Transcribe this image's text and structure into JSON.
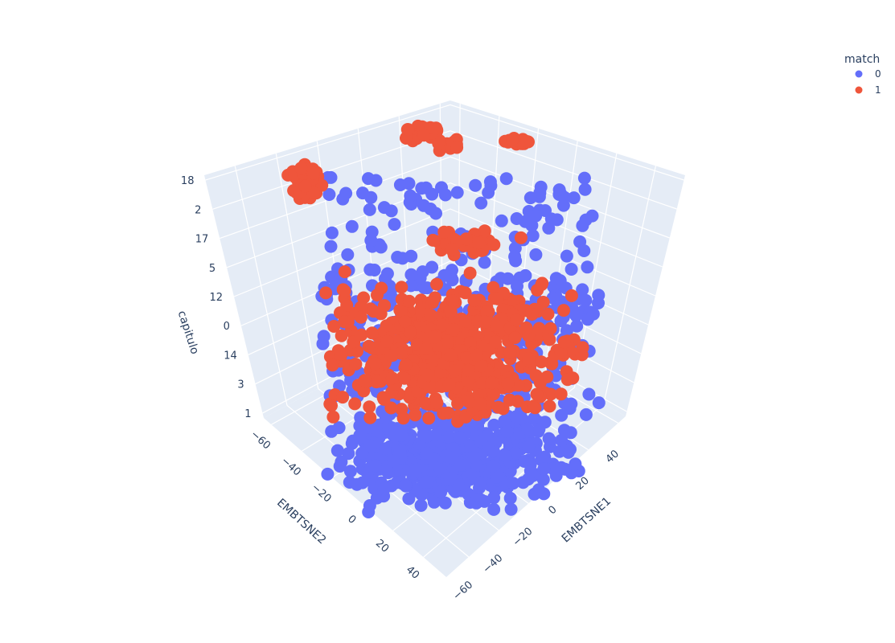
{
  "chart_data": {
    "type": "scatter3d",
    "axes": {
      "x": {
        "label": "EMBTSNE1",
        "ticks": [
          "−60",
          "−40",
          "−20",
          "0",
          "20",
          "40"
        ],
        "range": [
          -65,
          55
        ]
      },
      "y": {
        "label": "EMBTSNE2",
        "ticks": [
          "−60",
          "−40",
          "−20",
          "0",
          "20",
          "40"
        ],
        "range": [
          -65,
          55
        ]
      },
      "z": {
        "label": "capitulo",
        "type": "category",
        "ticks": [
          "1",
          "3",
          "14",
          "0",
          "12",
          "5",
          "17",
          "2",
          "18"
        ]
      }
    },
    "legend": {
      "title": "match",
      "placement": "top-right",
      "items": [
        {
          "name": "0",
          "color": "#636efa"
        },
        {
          "name": "1",
          "color": "#ef553b"
        }
      ]
    },
    "series": [
      {
        "name": "0",
        "color": "#636efa",
        "description": "wide cloud, dense at low capitulo levels"
      },
      {
        "name": "1",
        "color": "#ef553b",
        "description": "central cluster at mid levels plus small clusters at capitulo 18"
      }
    ],
    "grid": true
  }
}
